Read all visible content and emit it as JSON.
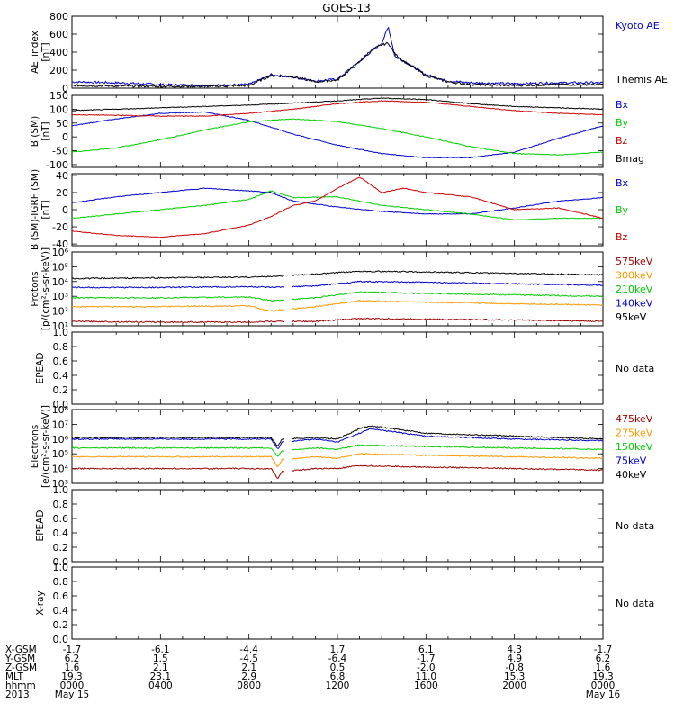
{
  "title": "GOES-13",
  "chart_data": [
    {
      "type": "line",
      "ylabel": "AE_index\n[nT]",
      "ylim": [
        0,
        800
      ],
      "yticks": [
        "0",
        "200",
        "400",
        "600",
        "800"
      ],
      "series": [
        {
          "name": "Kyoto AE",
          "color": "#0000cc",
          "x": [
            0,
            2,
            4,
            6,
            8,
            9,
            10,
            11,
            12,
            13,
            13.5,
            14,
            14.3,
            14.6,
            15,
            16,
            17,
            18,
            20,
            22,
            24
          ],
          "y": [
            70,
            60,
            40,
            30,
            40,
            150,
            120,
            80,
            100,
            300,
            400,
            500,
            680,
            350,
            300,
            150,
            80,
            60,
            50,
            60,
            60
          ]
        },
        {
          "name": "Themis AE",
          "color": "#000000",
          "x": [
            0,
            2,
            4,
            6,
            8,
            9,
            10,
            11,
            12,
            13,
            13.5,
            14,
            14.3,
            14.6,
            15,
            16,
            17,
            18,
            20,
            22,
            24
          ],
          "y": [
            30,
            25,
            20,
            20,
            30,
            140,
            130,
            70,
            90,
            290,
            420,
            480,
            500,
            380,
            300,
            140,
            70,
            40,
            30,
            40,
            40
          ]
        }
      ]
    },
    {
      "type": "line",
      "ylabel": "B (SM)\n[nT]",
      "ylim": [
        -110,
        150
      ],
      "yticks": [
        "150",
        "100",
        "50",
        "0",
        "-50",
        "-100"
      ],
      "series": [
        {
          "name": "Bx",
          "color": "#0000cc",
          "x": [
            0,
            2,
            4,
            6,
            8,
            10,
            12,
            14,
            16,
            18,
            20,
            22,
            24
          ],
          "y": [
            40,
            65,
            85,
            90,
            60,
            10,
            -30,
            -60,
            -75,
            -75,
            -55,
            -5,
            40
          ]
        },
        {
          "name": "By",
          "color": "#00cc00",
          "x": [
            0,
            2,
            4,
            6,
            8,
            10,
            12,
            14,
            16,
            18,
            20,
            22,
            24
          ],
          "y": [
            -55,
            -40,
            -10,
            25,
            55,
            65,
            55,
            30,
            0,
            -35,
            -60,
            -65,
            -55
          ]
        },
        {
          "name": "Bz",
          "color": "#cc0000",
          "x": [
            0,
            2,
            4,
            6,
            8,
            10,
            12,
            14,
            16,
            18,
            20,
            22,
            24
          ],
          "y": [
            80,
            78,
            75,
            75,
            85,
            100,
            120,
            130,
            125,
            110,
            95,
            85,
            80
          ]
        },
        {
          "name": "Bmag",
          "color": "#000000",
          "x": [
            0,
            2,
            4,
            6,
            8,
            10,
            12,
            14,
            16,
            18,
            20,
            22,
            24
          ],
          "y": [
            95,
            100,
            105,
            110,
            115,
            122,
            130,
            140,
            135,
            120,
            110,
            105,
            100
          ]
        }
      ]
    },
    {
      "type": "line",
      "ylabel": "B (SM)-IGRF (SM)\n[nT]",
      "ylim": [
        -42,
        42
      ],
      "yticks": [
        "40",
        "20",
        "0",
        "-20",
        "-40"
      ],
      "series": [
        {
          "name": "Bx",
          "color": "#0000cc",
          "x": [
            0,
            2,
            4,
            6,
            8,
            9,
            10,
            12,
            14,
            16,
            18,
            20,
            22,
            24
          ],
          "y": [
            8,
            15,
            20,
            25,
            22,
            20,
            10,
            3,
            -2,
            -5,
            -5,
            2,
            10,
            14
          ]
        },
        {
          "name": "By",
          "color": "#00cc00",
          "x": [
            0,
            2,
            4,
            6,
            8,
            9,
            10,
            12,
            14,
            16,
            18,
            20,
            22,
            24
          ],
          "y": [
            -10,
            -5,
            0,
            5,
            12,
            22,
            14,
            15,
            5,
            0,
            -5,
            -12,
            -10,
            -10
          ]
        },
        {
          "name": "Bz",
          "color": "#cc0000",
          "x": [
            0,
            2,
            4,
            6,
            8,
            9,
            10,
            11,
            12,
            13,
            14,
            15,
            16,
            18,
            20,
            22,
            24
          ],
          "y": [
            -25,
            -30,
            -32,
            -28,
            -18,
            -8,
            5,
            10,
            25,
            38,
            20,
            25,
            20,
            15,
            0,
            2,
            -10
          ]
        }
      ]
    },
    {
      "type": "line",
      "ylabel": "Protons\n[p/(cm²-s-sr-keV)]",
      "ylog": true,
      "ylim": [
        1,
        6
      ],
      "yticks": [
        "10⁶",
        "10⁵",
        "10⁴",
        "10³",
        "10²",
        "10¹"
      ],
      "gap": [
        9.6,
        9.9
      ],
      "series": [
        {
          "name": "575keV",
          "color": "#990000",
          "x": [
            0,
            4,
            8,
            9,
            11,
            13,
            16,
            20,
            24
          ],
          "y": [
            1.3,
            1.25,
            1.25,
            1.3,
            1.3,
            1.5,
            1.45,
            1.4,
            1.3
          ]
        },
        {
          "name": "300keV",
          "color": "#ff9900",
          "x": [
            0,
            4,
            8,
            9,
            11,
            13,
            16,
            20,
            24
          ],
          "y": [
            2.3,
            2.3,
            2.35,
            2.0,
            2.3,
            2.7,
            2.6,
            2.5,
            2.4
          ]
        },
        {
          "name": "210keV",
          "color": "#00cc00",
          "x": [
            0,
            4,
            8,
            9,
            11,
            13,
            16,
            20,
            24
          ],
          "y": [
            2.9,
            2.9,
            2.95,
            2.7,
            2.9,
            3.3,
            3.2,
            3.1,
            3.0
          ]
        },
        {
          "name": "140keV",
          "color": "#0000cc",
          "x": [
            0,
            4,
            8,
            9,
            11,
            13,
            16,
            20,
            24
          ],
          "y": [
            3.6,
            3.6,
            3.65,
            3.6,
            3.7,
            4.0,
            3.95,
            3.85,
            3.75
          ]
        },
        {
          "name": "95keV",
          "color": "#000000",
          "x": [
            0,
            4,
            8,
            9,
            11,
            13,
            16,
            20,
            24
          ],
          "y": [
            4.2,
            4.25,
            4.3,
            4.35,
            4.5,
            4.7,
            4.65,
            4.55,
            4.45
          ]
        }
      ]
    },
    {
      "type": "line",
      "ylabel": "EPEAD",
      "ylim": [
        0,
        1
      ],
      "yticks": [
        "1.0",
        "0.8",
        "0.6",
        "0.4",
        "0.2",
        "0.0"
      ],
      "note": "No data",
      "series": []
    },
    {
      "type": "line",
      "ylabel": "Electrons\n[e/(cm²-s-sr-keV)]",
      "ylog": true,
      "ylim": [
        3,
        8
      ],
      "yticks": [
        "10⁸",
        "10⁷",
        "10⁶",
        "10⁵",
        "10⁴",
        "10³"
      ],
      "gap": [
        9.6,
        9.9
      ],
      "series": [
        {
          "name": "475keV",
          "color": "#990000",
          "x": [
            0,
            4,
            8,
            9,
            9.3,
            9.5,
            11,
            12,
            13,
            16,
            20,
            24
          ],
          "y": [
            4.0,
            4.0,
            4.0,
            4.0,
            3.3,
            3.8,
            4.0,
            4.0,
            4.2,
            4.1,
            4.0,
            3.9
          ]
        },
        {
          "name": "275keV",
          "color": "#ff9900",
          "x": [
            0,
            4,
            8,
            9,
            9.3,
            9.5,
            11,
            12,
            13,
            16,
            20,
            24
          ],
          "y": [
            4.8,
            4.8,
            4.8,
            4.8,
            4.1,
            4.6,
            4.8,
            4.7,
            5.0,
            4.9,
            4.8,
            4.7
          ]
        },
        {
          "name": "150keV",
          "color": "#00cc00",
          "x": [
            0,
            4,
            8,
            9,
            9.3,
            9.5,
            11,
            12,
            13,
            16,
            20,
            24
          ],
          "y": [
            5.4,
            5.4,
            5.4,
            5.4,
            4.8,
            5.2,
            5.4,
            5.3,
            5.6,
            5.5,
            5.4,
            5.3
          ]
        },
        {
          "name": "75keV",
          "color": "#0000cc",
          "x": [
            0,
            4,
            8,
            9,
            9.3,
            9.5,
            11,
            12,
            13,
            13.5,
            16,
            20,
            24
          ],
          "y": [
            6.0,
            6.0,
            6.0,
            6.0,
            5.3,
            5.8,
            6.0,
            5.8,
            6.4,
            6.7,
            6.2,
            6.0,
            5.9
          ]
        },
        {
          "name": "40keV",
          "color": "#000000",
          "x": [
            0,
            4,
            8,
            9,
            9.3,
            9.5,
            11,
            12,
            13,
            13.5,
            16,
            20,
            24
          ],
          "y": [
            6.1,
            6.1,
            6.1,
            6.1,
            5.5,
            6.0,
            6.1,
            6.0,
            6.7,
            6.9,
            6.4,
            6.2,
            6.0
          ]
        }
      ]
    },
    {
      "type": "line",
      "ylabel": "EPEAD",
      "ylim": [
        0,
        1
      ],
      "yticks": [
        "1.0",
        "0.8",
        "0.6",
        "0.4",
        "0.2",
        "0.0"
      ],
      "note": "No data",
      "series": []
    },
    {
      "type": "line",
      "ylabel": "X-ray",
      "ylim": [
        0,
        1
      ],
      "yticks": [
        "1.0",
        "0.8",
        "0.6",
        "0.4",
        "0.2",
        "0.0"
      ],
      "note": "No data",
      "series": []
    }
  ],
  "x_axis_table": {
    "row_labels": [
      "X-GSM",
      "Y-GSM",
      "Z-GSM",
      "MLT",
      "hhmm",
      "2013"
    ],
    "columns": [
      [
        "-1.7",
        "6.2",
        "1.6",
        "19.3",
        "0000",
        "May 15"
      ],
      [
        "-6.1",
        "1.5",
        "2.1",
        "23.1",
        "0400",
        ""
      ],
      [
        "-4.4",
        "-4.5",
        "2.1",
        "2.9",
        "0800",
        ""
      ],
      [
        "1.7",
        "-6.4",
        "0.5",
        "6.8",
        "1200",
        ""
      ],
      [
        "6.1",
        "-1.7",
        "-2.0",
        "11.0",
        "1600",
        ""
      ],
      [
        "4.3",
        "4.9",
        "-0.8",
        "15.3",
        "2000",
        ""
      ],
      [
        "-1.7",
        "6.2",
        "1.6",
        "19.3",
        "0000",
        "May 16"
      ]
    ]
  }
}
